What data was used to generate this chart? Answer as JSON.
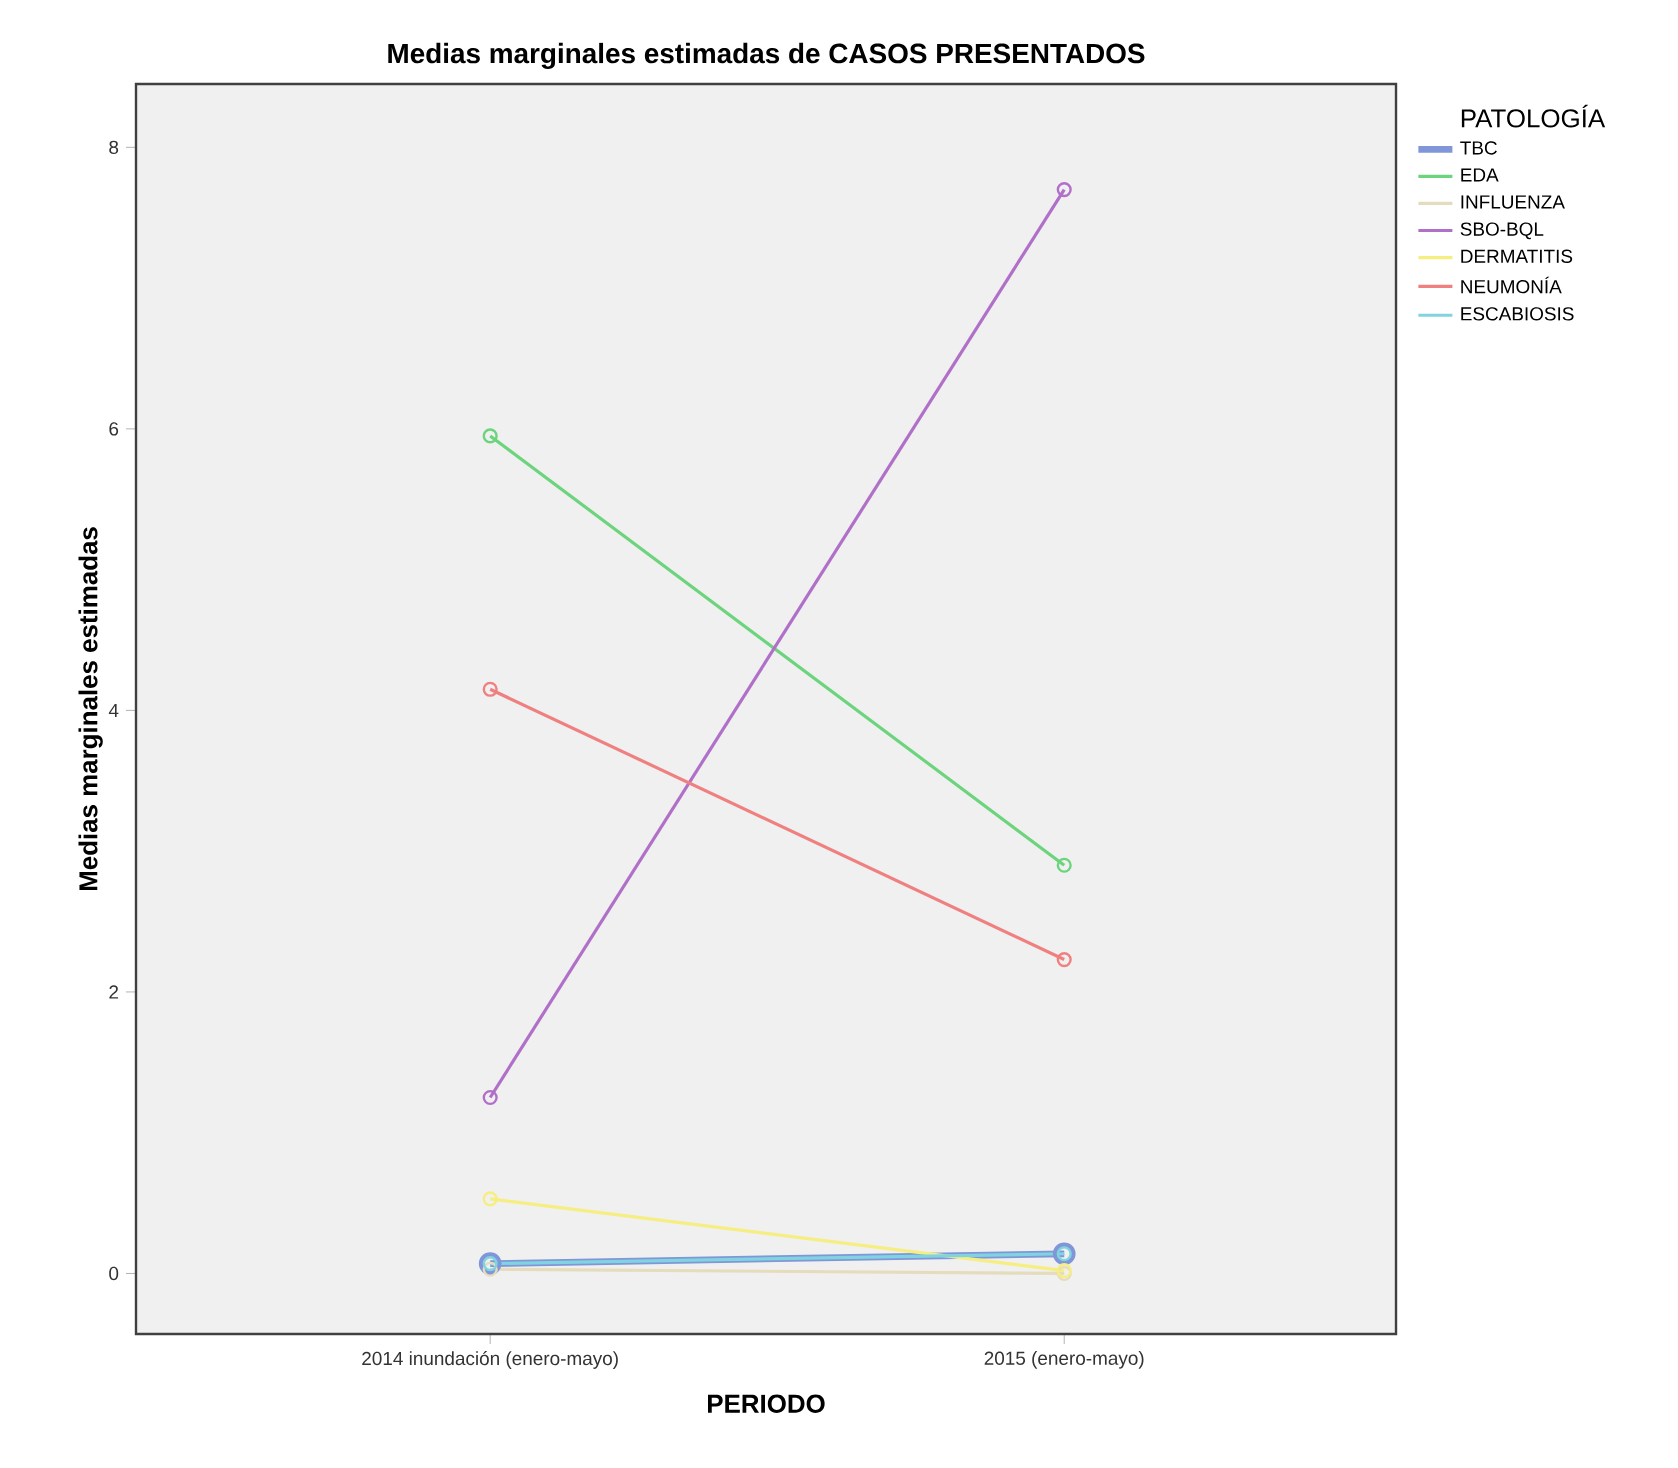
{
  "chart_data": {
    "type": "line",
    "title": "Medias marginales estimadas de CASOS PRESENTADOS",
    "xlabel": "PERIODO",
    "ylabel": "Medias marginales estimadas",
    "legend_title": "PATOLOGÍA",
    "categories": [
      "2014 inundación (enero-mayo)",
      "2015 (enero-mayo)"
    ],
    "series": [
      {
        "name": "TBC",
        "color": "#8096d8",
        "values": [
          0.07,
          0.14
        ]
      },
      {
        "name": "EDA",
        "color": "#6dd47e",
        "values": [
          5.95,
          2.9
        ]
      },
      {
        "name": "INFLUENZA",
        "color": "#e4dcbc",
        "values": [
          0.03,
          0.0
        ]
      },
      {
        "name": "SBO-BQL",
        "color": "#b070c8",
        "values": [
          1.25,
          7.7
        ]
      },
      {
        "name": "DERMATITIS",
        "color": "#f6ee80",
        "values": [
          0.53,
          0.02
        ]
      },
      {
        "name": "NEUMONÍA",
        "color": "#f08080",
        "values": [
          4.15,
          2.23
        ]
      },
      {
        "name": "ESCABIOSIS",
        "color": "#80d4e0",
        "values": [
          0.07,
          0.14
        ]
      }
    ],
    "ylim": [
      -0.43,
      8.45
    ],
    "yticks": [
      0,
      2,
      4,
      6,
      8
    ],
    "legend": "right",
    "marker": "circle",
    "line_style": "solid"
  }
}
